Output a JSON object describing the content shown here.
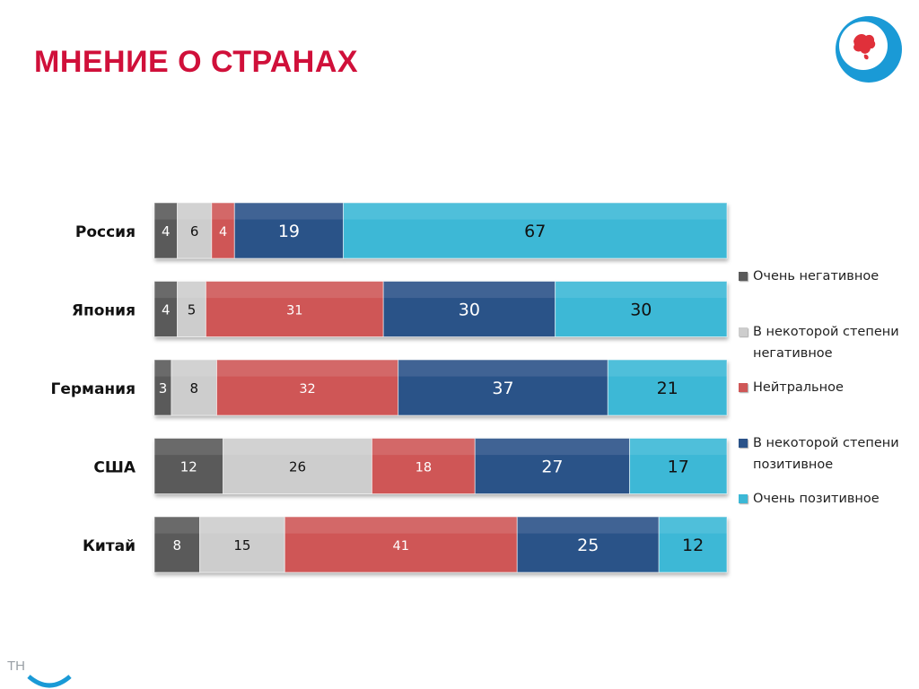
{
  "header": {
    "title": "МНЕНИЕ О СТРАНАХ"
  },
  "footer": {
    "text": "TH"
  },
  "colors": {
    "title": "#d0103a",
    "very_negative": "#5a5a5a",
    "somewhat_negative": "#cdcdcd",
    "neutral": "#cf5757",
    "somewhat_positive": "#2a5288",
    "very_positive": "#3cb8d6",
    "logo_ring": "#1a9ad6",
    "logo_map": "#e0303a"
  },
  "chart_data": {
    "type": "bar",
    "orientation": "horizontal",
    "stacked": "percent",
    "categories": [
      "Россия",
      "Япония",
      "Германия",
      "США",
      "Китай"
    ],
    "series": [
      {
        "name": "Очень негативное",
        "values": [
          4,
          4,
          3,
          12,
          8
        ]
      },
      {
        "name": "В некоторой степени негативное",
        "values": [
          6,
          5,
          8,
          26,
          15
        ]
      },
      {
        "name": "Нейтральное",
        "values": [
          4,
          31,
          32,
          18,
          41
        ]
      },
      {
        "name": "В некоторой степени позитивное",
        "values": [
          19,
          30,
          37,
          27,
          25
        ]
      },
      {
        "name": "Очень позитивное",
        "values": [
          67,
          30,
          21,
          17,
          12
        ]
      }
    ],
    "legend_position": "right",
    "grid": false
  },
  "legend": {
    "items": [
      {
        "lines": [
          "Очень негативное"
        ]
      },
      {
        "lines": [
          "В некоторой степени",
          "негативное"
        ]
      },
      {
        "lines": [
          "Нейтральное"
        ]
      },
      {
        "lines": [
          "В некоторой степени",
          "позитивное"
        ]
      },
      {
        "lines": [
          "Очень позитивное"
        ]
      }
    ]
  }
}
